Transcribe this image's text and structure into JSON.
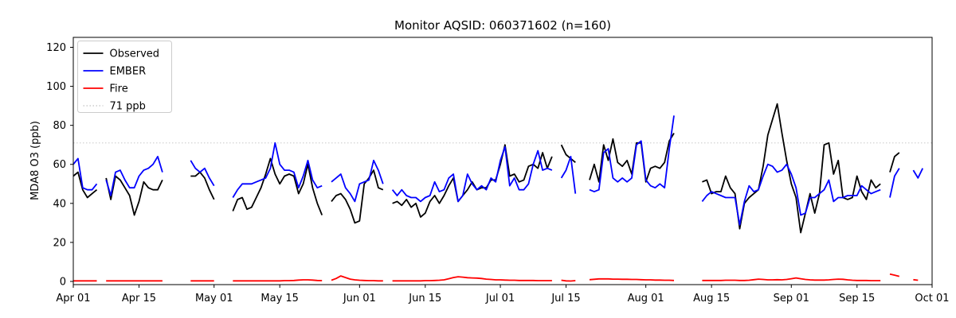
{
  "title": "Monitor AQSID: 060371602 (n=160)",
  "chart_data": {
    "type": "line",
    "title": "Monitor AQSID: 060371602 (n=160)",
    "xlabel": "",
    "ylabel": "MDA8 O3 (ppb)",
    "x_start_label": "Apr 01",
    "x_end_label": "Oct 01",
    "x_range_days": [
      0,
      183
    ],
    "ylim": [
      -2,
      125
    ],
    "yticks": [
      0,
      20,
      40,
      60,
      80,
      100,
      120
    ],
    "xtick_days": [
      0,
      14,
      30,
      44,
      61,
      75,
      91,
      105,
      122,
      136,
      153,
      167,
      183
    ],
    "xtick_labels": [
      "Apr 01",
      "Apr 15",
      "May 01",
      "May 15",
      "Jun 01",
      "Jun 15",
      "Jul 01",
      "Jul 15",
      "Aug 01",
      "Aug 15",
      "Sep 01",
      "Sep 15",
      "Oct 01"
    ],
    "grid": false,
    "legend_position": "upper left",
    "threshold": {
      "value": 71,
      "label": "71 ppb",
      "color": "#d3d3d3",
      "style": "dotted"
    },
    "legend": [
      {
        "label": "Observed",
        "color": "#000000",
        "dash": ""
      },
      {
        "label": "EMBER",
        "color": "#0000ff",
        "dash": ""
      },
      {
        "label": "Fire",
        "color": "#ff0000",
        "dash": ""
      },
      {
        "label": "71 ppb",
        "color": "#d3d3d3",
        "dash": "1.5 2.5"
      }
    ],
    "series": [
      {
        "name": "Observed",
        "color": "#000000",
        "values": [
          54,
          56,
          47,
          43,
          45,
          47,
          null,
          53,
          42,
          54,
          52,
          48,
          44,
          34,
          41,
          51,
          48,
          47,
          47,
          52,
          null,
          null,
          null,
          null,
          null,
          54,
          54,
          56,
          53,
          47,
          42,
          null,
          null,
          null,
          36,
          42,
          43,
          37,
          38,
          43,
          48,
          55,
          63,
          55,
          50,
          54,
          55,
          54,
          45,
          50,
          60,
          48,
          40,
          34,
          null,
          41,
          44,
          45,
          42,
          37,
          30,
          31,
          50,
          53,
          57,
          48,
          47,
          null,
          40,
          41,
          39,
          42,
          38,
          40,
          33,
          35,
          41,
          44,
          40,
          44,
          49,
          53,
          41,
          44,
          47,
          51,
          47,
          48,
          48,
          52,
          52,
          60,
          70,
          54,
          55,
          51,
          52,
          59,
          60,
          58,
          66,
          58,
          64,
          null,
          70,
          65,
          63,
          61,
          null,
          null,
          52,
          60,
          51,
          70,
          62,
          73,
          61,
          59,
          62,
          55,
          71,
          71,
          51,
          58,
          59,
          58,
          61,
          72,
          76,
          null,
          null,
          null,
          null,
          null,
          51,
          52,
          45,
          46,
          46,
          54,
          48,
          45,
          27,
          40,
          43,
          45,
          47,
          59,
          75,
          83,
          91,
          76,
          62,
          50,
          43,
          25,
          35,
          45,
          35,
          45,
          70,
          71,
          55,
          62,
          43,
          42,
          43,
          54,
          46,
          42,
          52,
          48,
          50,
          null,
          56,
          64,
          66,
          null,
          null,
          null,
          null,
          null,
          null,
          null
        ]
      },
      {
        "name": "EMBER",
        "color": "#0000ff",
        "values": [
          60,
          63,
          48,
          47,
          47,
          50,
          null,
          52,
          44,
          56,
          57,
          52,
          48,
          48,
          54,
          57,
          58,
          60,
          64,
          56,
          null,
          null,
          null,
          null,
          null,
          62,
          58,
          56,
          58,
          53,
          49,
          null,
          null,
          null,
          43,
          47,
          50,
          50,
          50,
          51,
          52,
          53,
          58,
          71,
          60,
          57,
          57,
          56,
          48,
          54,
          62,
          52,
          48,
          49,
          null,
          51,
          53,
          55,
          48,
          45,
          41,
          50,
          51,
          52,
          62,
          57,
          50,
          null,
          47,
          44,
          47,
          44,
          43,
          43,
          41,
          43,
          44,
          51,
          46,
          47,
          53,
          55,
          41,
          44,
          55,
          50,
          47,
          49,
          47,
          53,
          51,
          62,
          69,
          49,
          53,
          47,
          47,
          50,
          60,
          67,
          57,
          58,
          57,
          null,
          53,
          57,
          64,
          45,
          null,
          null,
          47,
          46,
          47,
          66,
          68,
          53,
          51,
          53,
          51,
          53,
          70,
          72,
          52,
          49,
          48,
          50,
          48,
          68,
          85,
          null,
          null,
          null,
          null,
          null,
          41,
          44,
          46,
          45,
          44,
          43,
          43,
          43,
          29,
          41,
          49,
          46,
          47,
          54,
          60,
          59,
          56,
          57,
          60,
          55,
          48,
          34,
          35,
          43,
          43,
          45,
          47,
          52,
          41,
          43,
          43,
          44,
          44,
          44,
          49,
          47,
          45,
          46,
          47,
          null,
          43,
          54,
          58,
          null,
          null,
          57,
          53,
          58,
          null,
          null
        ]
      },
      {
        "name": "Fire",
        "color": "#ff0000",
        "values": [
          0.3,
          0.3,
          0.3,
          0.3,
          0.3,
          0.3,
          null,
          0.3,
          0.3,
          0.3,
          0.3,
          0.3,
          0.3,
          0.3,
          0.3,
          0.3,
          0.3,
          0.3,
          0.3,
          0.3,
          null,
          null,
          null,
          null,
          null,
          0.3,
          0.3,
          0.3,
          0.3,
          0.3,
          0.3,
          null,
          null,
          null,
          0.3,
          0.3,
          0.3,
          0.3,
          0.3,
          0.3,
          0.3,
          0.3,
          0.3,
          0.3,
          0.3,
          0.4,
          0.4,
          0.5,
          0.7,
          0.8,
          0.8,
          0.7,
          0.5,
          0.4,
          null,
          0.6,
          1.5,
          2.8,
          2.0,
          1.2,
          0.8,
          0.6,
          0.5,
          0.4,
          0.4,
          0.3,
          0.3,
          null,
          0.3,
          0.3,
          0.3,
          0.3,
          0.3,
          0.3,
          0.3,
          0.4,
          0.4,
          0.5,
          0.6,
          0.8,
          1.4,
          2.0,
          2.4,
          2.2,
          1.9,
          1.8,
          1.7,
          1.5,
          1.2,
          1.0,
          0.8,
          0.8,
          0.7,
          0.6,
          0.6,
          0.5,
          0.5,
          0.5,
          0.5,
          0.4,
          0.4,
          0.4,
          0.4,
          null,
          0.6,
          0.3,
          0.2,
          0.4,
          null,
          null,
          0.9,
          1.1,
          1.3,
          1.3,
          1.3,
          1.2,
          1.2,
          1.1,
          1.1,
          1.0,
          1.0,
          0.9,
          0.8,
          0.8,
          0.7,
          0.7,
          0.6,
          0.6,
          0.5,
          null,
          null,
          null,
          null,
          null,
          0.5,
          0.5,
          0.5,
          0.5,
          0.5,
          0.6,
          0.6,
          0.6,
          0.5,
          0.5,
          0.6,
          0.9,
          1.2,
          1.0,
          0.8,
          0.8,
          0.9,
          0.8,
          1.0,
          1.4,
          1.8,
          1.4,
          1.0,
          0.8,
          0.7,
          0.7,
          0.7,
          0.8,
          1.0,
          1.2,
          1.1,
          0.8,
          0.6,
          0.5,
          0.5,
          0.5,
          0.4,
          0.4,
          0.4,
          null,
          3.8,
          3.2,
          2.6,
          null,
          null,
          0.9,
          0.6,
          null,
          null,
          null
        ]
      }
    ]
  }
}
